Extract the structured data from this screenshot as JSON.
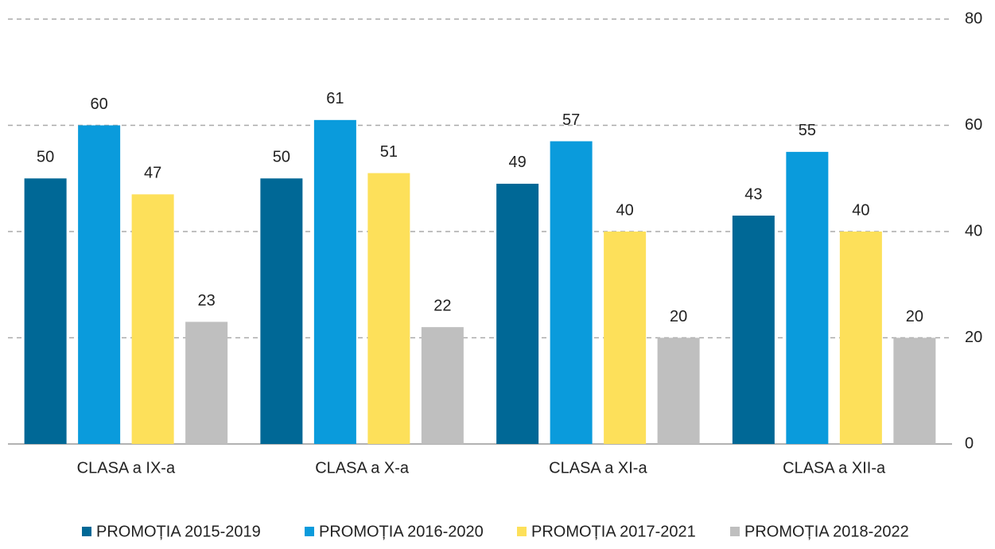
{
  "chart_data": {
    "type": "bar",
    "categories": [
      "CLASA a IX-a",
      "CLASA a X-a",
      "CLASA a XI-a",
      "CLASA a XII-a"
    ],
    "series": [
      {
        "name": "PROMOȚIA 2015-2019",
        "color": "#006896",
        "values": [
          50,
          50,
          49,
          43
        ]
      },
      {
        "name": "PROMOȚIA 2016-2020",
        "color": "#0a9bdc",
        "values": [
          60,
          61,
          57,
          55
        ]
      },
      {
        "name": "PROMOȚIA 2017-2021",
        "color": "#fde05a",
        "values": [
          47,
          51,
          40,
          40
        ]
      },
      {
        "name": "PROMOȚIA 2018-2022",
        "color": "#bfbfbf",
        "values": [
          23,
          22,
          20,
          20
        ]
      }
    ],
    "ylim": [
      0,
      80
    ],
    "yticks": [
      0,
      20,
      40,
      60,
      80
    ],
    "grid": true,
    "legend": "bottom"
  }
}
